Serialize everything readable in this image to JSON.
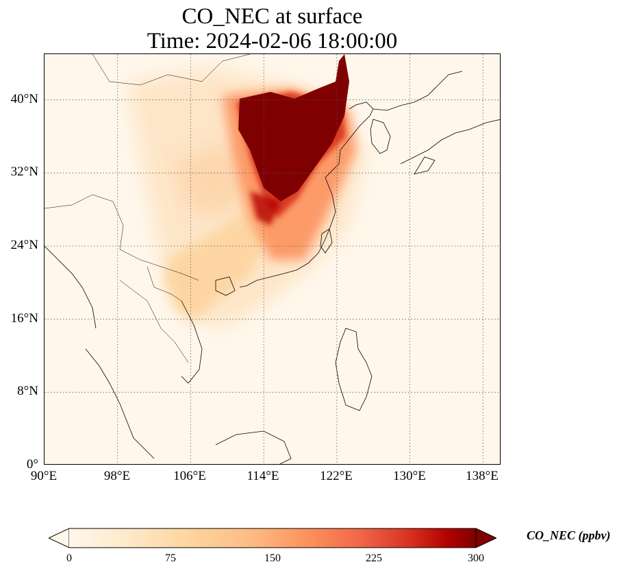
{
  "title": {
    "line1": "CO_NEC at surface",
    "line2": "Time: 2024-02-06 18:00:00"
  },
  "map": {
    "variable": "CO_NEC",
    "level": "surface",
    "extent": {
      "lon": [
        90,
        140
      ],
      "lat": [
        0,
        45
      ]
    },
    "lat_ticks": [
      "0°",
      "8°N",
      "16°N",
      "24°N",
      "32°N",
      "40°N"
    ],
    "lon_ticks": [
      "90°E",
      "98°E",
      "106°E",
      "114°E",
      "122°E",
      "130°E",
      "138°E"
    ],
    "gridlines": "dotted",
    "colormap": "OrRd",
    "colors": {
      "low": "#fff7ec",
      "mid": "#fdbb84",
      "high": "#7f0000"
    },
    "hotspot_regions": [
      "North China Plain",
      "Central/East China"
    ]
  },
  "colorbar": {
    "label": "CO_NEC (ppbv)",
    "ticks": [
      "0",
      "75",
      "150",
      "225",
      "300"
    ],
    "min": 0,
    "max": 300,
    "extend": "both"
  }
}
